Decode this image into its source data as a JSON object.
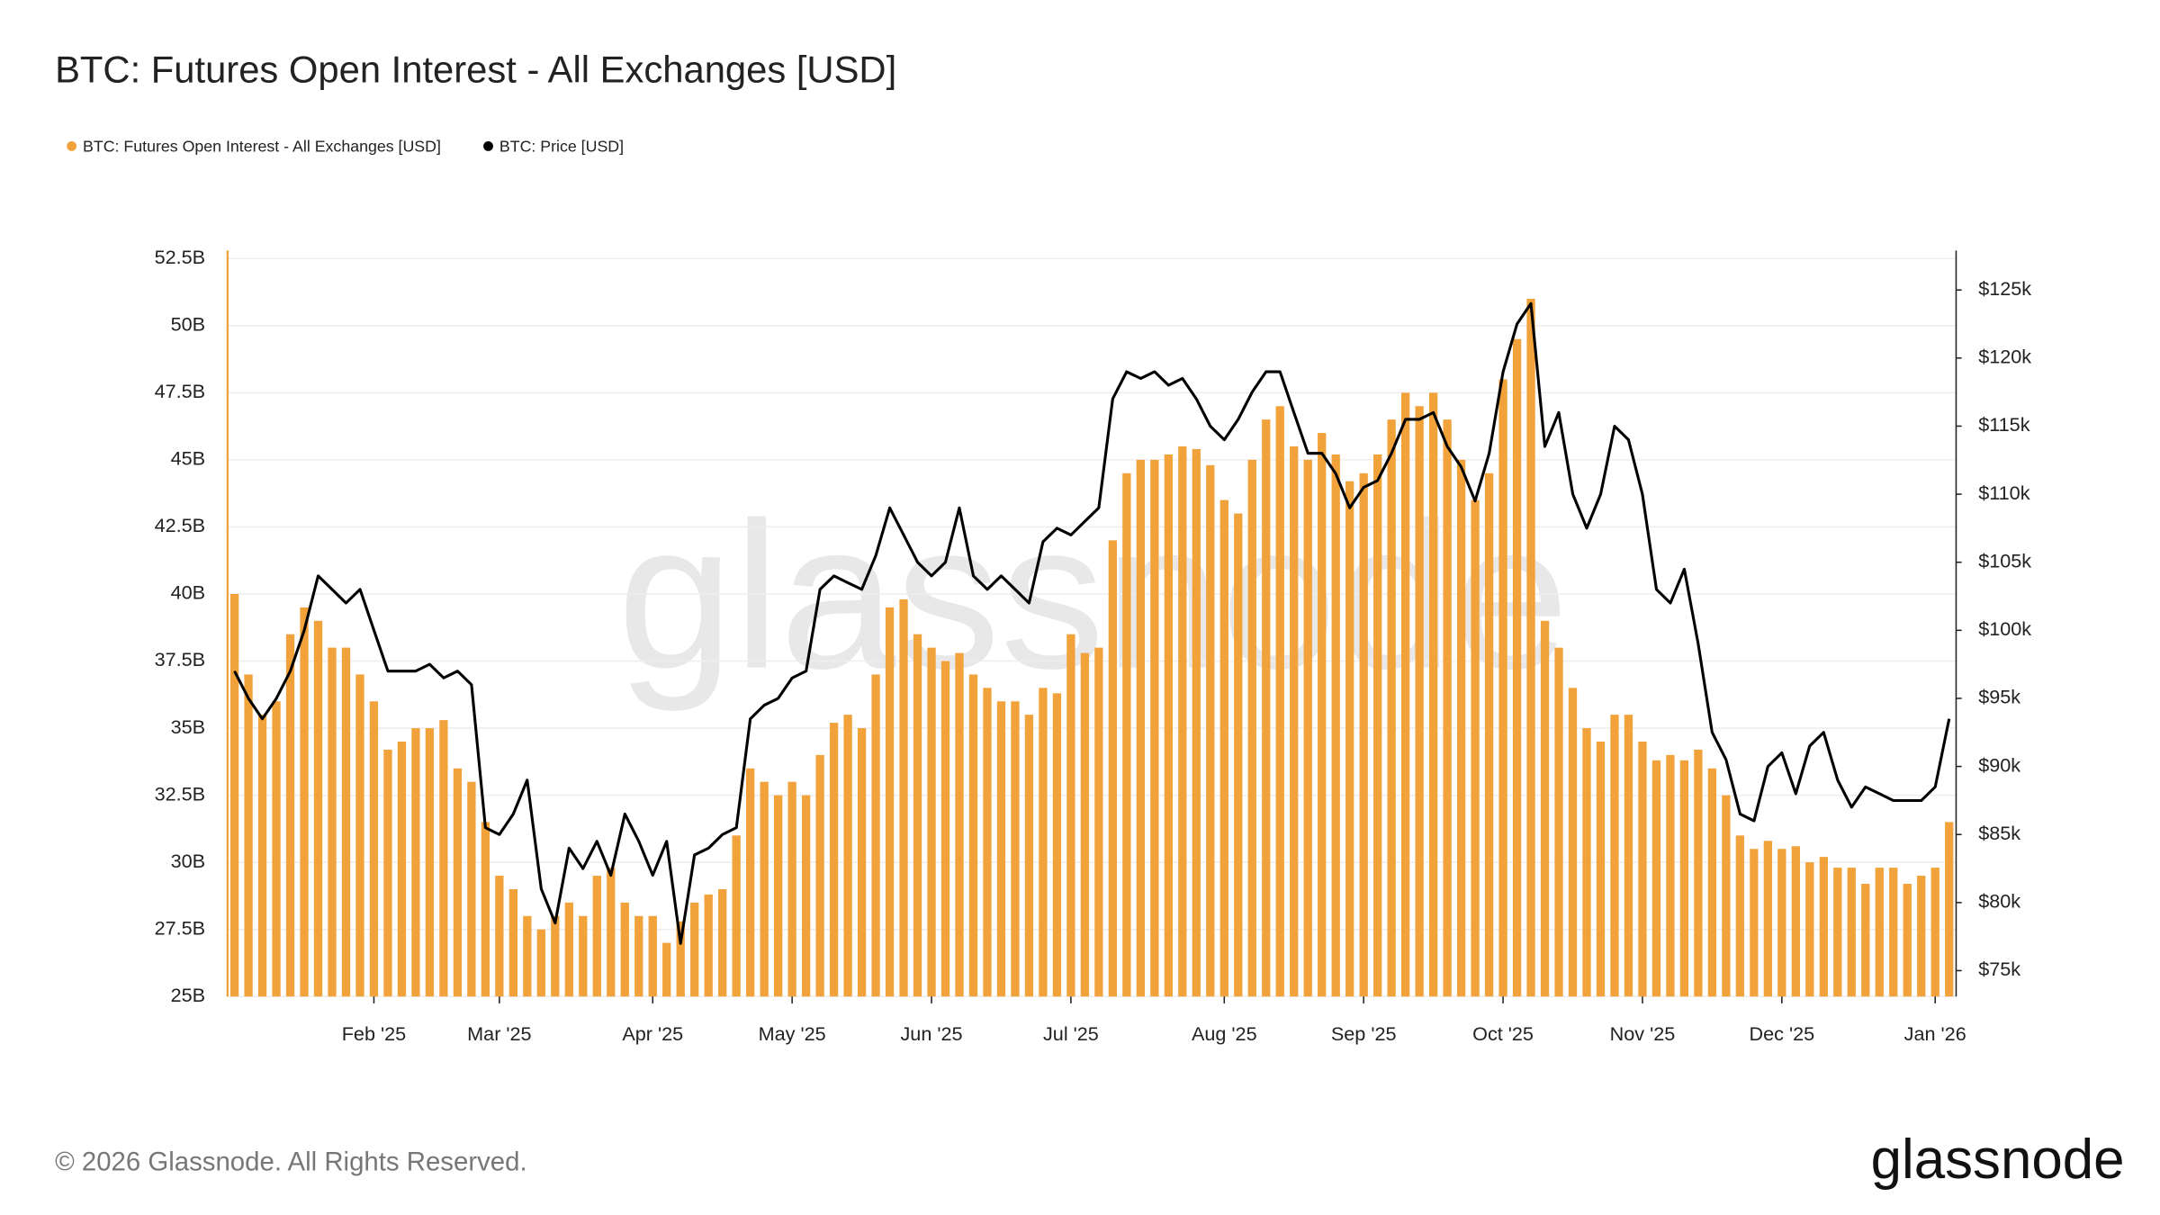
{
  "chart_data": {
    "type": "bar_line",
    "title": "BTC: Futures Open Interest - All Exchanges [USD]",
    "watermark": "glassnode",
    "footer": "© 2026 Glassnode. All Rights Reserved.",
    "logo": "glassnode",
    "categories": [
      null,
      null,
      null,
      null,
      null,
      null,
      null,
      null,
      null,
      null,
      "Feb '25",
      null,
      null,
      null,
      null,
      null,
      null,
      null,
      null,
      "Mar '25",
      null,
      null,
      null,
      null,
      null,
      null,
      null,
      null,
      null,
      null,
      "Apr '25",
      null,
      null,
      null,
      null,
      null,
      null,
      null,
      null,
      null,
      "May '25",
      null,
      null,
      null,
      null,
      null,
      null,
      null,
      null,
      null,
      "Jun '25",
      null,
      null,
      null,
      null,
      null,
      null,
      null,
      null,
      null,
      "Jul '25",
      null,
      null,
      null,
      null,
      null,
      null,
      null,
      null,
      null,
      null,
      "Aug '25",
      null,
      null,
      null,
      null,
      null,
      null,
      null,
      null,
      null,
      "Sep '25",
      null,
      null,
      null,
      null,
      null,
      null,
      null,
      null,
      null,
      "Oct '25",
      null,
      null,
      null,
      null,
      null,
      null,
      null,
      null,
      null,
      "Nov '25",
      null,
      null,
      null,
      null,
      null,
      null,
      null,
      null,
      null,
      "Dec '25",
      null,
      null,
      null,
      null,
      null,
      null,
      null,
      null,
      null,
      null,
      "Jan '26",
      null
    ],
    "series": [
      {
        "name": "BTC: Futures Open Interest - All Exchanges [USD]",
        "color": "#f2a23a",
        "type": "bar",
        "axis": "y",
        "values": [
          40,
          37,
          35.5,
          36,
          38.5,
          39.5,
          39,
          38,
          38,
          37,
          36,
          34.2,
          34.5,
          35,
          35,
          35.3,
          33.5,
          33,
          31.5,
          29.5,
          29,
          28,
          27.5,
          28,
          28.5,
          28,
          29.5,
          29.8,
          28.5,
          28,
          28,
          27,
          27.8,
          28.5,
          28.8,
          29,
          31,
          33.5,
          33,
          32.5,
          33,
          32.5,
          34,
          35.2,
          35.5,
          35,
          37,
          39.5,
          39.8,
          38.5,
          38,
          37.5,
          37.8,
          37,
          36.5,
          36,
          36,
          35.5,
          36.5,
          36.3,
          38.5,
          37.8,
          38,
          42,
          44.5,
          45,
          45,
          45.2,
          45.5,
          45.4,
          44.8,
          43.5,
          43,
          45,
          46.5,
          47,
          45.5,
          45,
          46,
          45.2,
          44.2,
          44.5,
          45.2,
          46.5,
          47.5,
          47,
          47.5,
          46.5,
          45,
          43.5,
          44.5,
          48,
          49.5,
          51,
          39,
          38,
          36.5,
          35,
          34.5,
          35.5,
          35.5,
          34.5,
          33.8,
          34,
          33.8,
          34.2,
          33.5,
          32.5,
          31,
          30.5,
          30.8,
          30.5,
          30.6,
          30,
          30.2,
          29.8,
          29.8,
          29.2,
          29.8,
          29.8,
          29.2,
          29.5,
          29.8,
          31.5
        ]
      },
      {
        "name": "BTC: Price [USD]",
        "color": "#000000",
        "type": "line",
        "axis": "y2",
        "values": [
          97,
          95,
          93.5,
          95,
          97,
          100,
          104,
          103,
          102,
          103,
          100,
          97,
          97,
          97,
          97.5,
          96.5,
          97,
          96,
          85.5,
          85,
          86.5,
          89,
          81,
          78.5,
          84,
          82.5,
          84.5,
          82,
          86.5,
          84.5,
          82,
          84.5,
          77,
          83.5,
          84,
          85,
          85.5,
          93.5,
          94.5,
          95,
          96.5,
          97,
          103,
          104,
          103.5,
          103,
          105.5,
          109,
          107,
          105,
          104,
          105,
          109,
          104,
          103,
          104,
          103,
          102,
          106.5,
          107.5,
          107,
          108,
          109,
          117,
          119,
          118.5,
          119,
          118,
          118.5,
          117,
          115,
          114,
          115.5,
          117.5,
          119,
          119,
          116,
          113,
          113,
          111.5,
          109,
          110.5,
          111,
          113,
          115.5,
          115.5,
          116,
          113.5,
          112,
          109.5,
          113,
          119,
          122.5,
          124,
          113.5,
          116,
          110,
          107.5,
          110,
          115,
          114,
          110,
          103,
          102,
          104.5,
          99,
          92.5,
          90.5,
          86.5,
          86,
          90,
          91,
          88,
          91.5,
          92.5,
          89,
          87,
          88.5,
          88,
          87.5,
          87.5,
          87.5,
          88.5,
          93.5
        ]
      }
    ],
    "ylim": [
      25,
      52.8
    ],
    "yticks": [
      {
        "value": 25,
        "label": "25B"
      },
      {
        "value": 27.5,
        "label": "27.5B"
      },
      {
        "value": 30,
        "label": "30B"
      },
      {
        "value": 32.5,
        "label": "32.5B"
      },
      {
        "value": 35,
        "label": "35B"
      },
      {
        "value": 37.5,
        "label": "37.5B"
      },
      {
        "value": 40,
        "label": "40B"
      },
      {
        "value": 42.5,
        "label": "42.5B"
      },
      {
        "value": 45,
        "label": "45B"
      },
      {
        "value": 47.5,
        "label": "47.5B"
      },
      {
        "value": 50,
        "label": "50B"
      },
      {
        "value": 52.5,
        "label": "52.5B"
      }
    ],
    "y2lim": [
      73.1,
      127.9
    ],
    "y2ticks": [
      {
        "value": 75,
        "label": "$75k"
      },
      {
        "value": 80,
        "label": "$80k"
      },
      {
        "value": 85,
        "label": "$85k"
      },
      {
        "value": 90,
        "label": "$90k"
      },
      {
        "value": 95,
        "label": "$95k"
      },
      {
        "value": 100,
        "label": "$100k"
      },
      {
        "value": 105,
        "label": "$105k"
      },
      {
        "value": 110,
        "label": "$110k"
      },
      {
        "value": 115,
        "label": "$115k"
      },
      {
        "value": 120,
        "label": "$120k"
      },
      {
        "value": 125,
        "label": "$125k"
      }
    ],
    "grid": true
  }
}
